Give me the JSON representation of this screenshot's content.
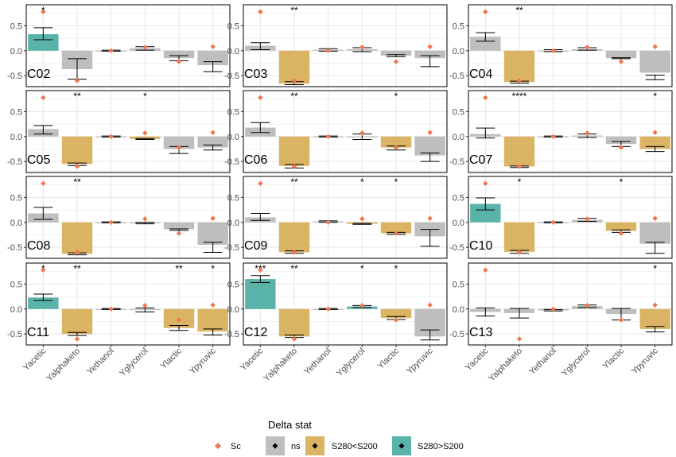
{
  "colors": {
    "ns": "#BEBEBE",
    "lt": "#DBB463",
    "gt": "#5AB3A8",
    "sc": "#F2764F",
    "grid": "#E6E6E6",
    "axis_text": "#4D4D4D"
  },
  "legend": {
    "title": "Delta stat",
    "items": [
      {
        "key": "sc",
        "label": "Sc"
      },
      {
        "key": "ns",
        "label": "ns"
      },
      {
        "key": "lt",
        "label": "S280<S200"
      },
      {
        "key": "gt",
        "label": "S280>S200"
      }
    ]
  },
  "chart_data": {
    "type": "bar",
    "facet_layout": "5 rows x 3 columns",
    "categories": [
      "Yacetic",
      "Yalphaketo",
      "Yethanol",
      "Yglycerol",
      "Ylactic",
      "Ypyruvic"
    ],
    "y_ticks": [
      -0.5,
      0.0,
      0.5
    ],
    "y_tick_labels": [
      "-0.5",
      "0.0",
      "0.5"
    ],
    "ylim": [
      -0.72,
      0.92
    ],
    "sc_values": [
      0.78,
      -0.6,
      0.0,
      0.07,
      -0.22,
      0.08
    ],
    "panels": [
      {
        "label": "C02",
        "values": [
          0.33,
          -0.37,
          0.0,
          0.05,
          -0.15,
          -0.29
        ],
        "err_lo": [
          0.22,
          -0.57,
          -0.01,
          0.01,
          -0.2,
          -0.42
        ],
        "err_hi": [
          0.46,
          -0.16,
          0.01,
          0.08,
          -0.1,
          -0.22
        ],
        "stat": [
          "gt",
          "ns",
          "ns",
          "ns",
          "ns",
          "ns"
        ],
        "sig": [
          "*",
          "",
          "",
          "",
          "",
          ""
        ]
      },
      {
        "label": "C03",
        "values": [
          0.1,
          -0.66,
          0.02,
          0.03,
          -0.1,
          -0.15
        ],
        "err_lo": [
          0.02,
          -0.68,
          -0.01,
          -0.02,
          -0.12,
          -0.32
        ],
        "err_hi": [
          0.16,
          -0.62,
          0.04,
          0.06,
          -0.08,
          -0.1
        ],
        "stat": [
          "ns",
          "lt",
          "ns",
          "ns",
          "ns",
          "ns"
        ],
        "sig": [
          "",
          "**",
          "",
          "",
          "",
          ""
        ]
      },
      {
        "label": "C04",
        "values": [
          0.28,
          -0.63,
          0.0,
          0.03,
          -0.15,
          -0.44
        ],
        "err_lo": [
          0.19,
          -0.65,
          -0.02,
          0.01,
          -0.16,
          -0.58
        ],
        "err_hi": [
          0.36,
          -0.61,
          0.02,
          0.06,
          -0.14,
          -0.49
        ],
        "stat": [
          "ns",
          "lt",
          "ns",
          "ns",
          "ns",
          "ns"
        ],
        "sig": [
          "",
          "**",
          "",
          "",
          "",
          ""
        ]
      },
      {
        "label": "C05",
        "values": [
          0.15,
          -0.55,
          0.0,
          -0.05,
          -0.25,
          -0.22
        ],
        "err_lo": [
          0.05,
          -0.58,
          -0.01,
          -0.06,
          -0.34,
          -0.27
        ],
        "err_hi": [
          0.22,
          -0.53,
          0.01,
          -0.04,
          -0.2,
          -0.17
        ],
        "stat": [
          "ns",
          "lt",
          "ns",
          "lt",
          "ns",
          "ns"
        ],
        "sig": [
          "",
          "**",
          "",
          "*",
          "",
          ""
        ]
      },
      {
        "label": "C06",
        "values": [
          0.18,
          -0.59,
          0.0,
          0.0,
          -0.22,
          -0.38
        ],
        "err_lo": [
          0.08,
          -0.63,
          -0.01,
          -0.06,
          -0.27,
          -0.5
        ],
        "err_hi": [
          0.28,
          -0.56,
          0.01,
          0.05,
          -0.19,
          -0.33
        ],
        "stat": [
          "ns",
          "lt",
          "ns",
          "ns",
          "lt",
          "ns"
        ],
        "sig": [
          "",
          "**",
          "",
          "",
          "*",
          ""
        ]
      },
      {
        "label": "C07",
        "values": [
          0.05,
          -0.6,
          0.0,
          0.02,
          -0.15,
          -0.25
        ],
        "err_lo": [
          -0.03,
          -0.62,
          -0.01,
          -0.02,
          -0.2,
          -0.3
        ],
        "err_hi": [
          0.17,
          -0.59,
          0.01,
          0.05,
          -0.1,
          -0.2
        ],
        "stat": [
          "ns",
          "lt",
          "ns",
          "ns",
          "ns",
          "lt"
        ],
        "sig": [
          "",
          "****",
          "",
          "",
          "",
          "*"
        ]
      },
      {
        "label": "C08",
        "values": [
          0.18,
          -0.63,
          0.0,
          -0.02,
          -0.14,
          -0.45
        ],
        "err_lo": [
          0.06,
          -0.65,
          -0.01,
          -0.03,
          -0.16,
          -0.6
        ],
        "err_hi": [
          0.3,
          -0.61,
          0.01,
          0.0,
          -0.13,
          -0.4
        ],
        "stat": [
          "ns",
          "lt",
          "ns",
          "ns",
          "ns",
          "ns"
        ],
        "sig": [
          "",
          "**",
          "",
          "",
          "",
          ""
        ]
      },
      {
        "label": "C09",
        "values": [
          0.1,
          -0.6,
          0.02,
          -0.03,
          -0.22,
          -0.28
        ],
        "err_lo": [
          0.04,
          -0.62,
          0.0,
          -0.04,
          -0.24,
          -0.48
        ],
        "err_hi": [
          0.18,
          -0.57,
          0.03,
          -0.02,
          -0.2,
          -0.14
        ],
        "stat": [
          "ns",
          "lt",
          "ns",
          "lt",
          "lt",
          "ns"
        ],
        "sig": [
          "",
          "**",
          "",
          "*",
          "*",
          ""
        ]
      },
      {
        "label": "C10",
        "values": [
          0.37,
          -0.59,
          0.0,
          0.05,
          -0.17,
          -0.43
        ],
        "err_lo": [
          0.25,
          -0.62,
          -0.01,
          0.02,
          -0.2,
          -0.62
        ],
        "err_hi": [
          0.49,
          -0.56,
          0.01,
          0.08,
          -0.15,
          -0.4
        ],
        "stat": [
          "gt",
          "lt",
          "ns",
          "ns",
          "lt",
          "ns"
        ],
        "sig": [
          "",
          "*",
          "",
          "",
          "*",
          ""
        ]
      },
      {
        "label": "C11",
        "values": [
          0.23,
          -0.5,
          0.0,
          -0.02,
          -0.38,
          -0.45
        ],
        "err_lo": [
          0.17,
          -0.53,
          -0.01,
          -0.06,
          -0.43,
          -0.52
        ],
        "err_hi": [
          0.3,
          -0.47,
          0.01,
          0.02,
          -0.33,
          -0.4
        ],
        "stat": [
          "gt",
          "lt",
          "ns",
          "ns",
          "lt",
          "lt"
        ],
        "sig": [
          "*",
          "**",
          "",
          "",
          "**",
          "*"
        ]
      },
      {
        "label": "C12",
        "values": [
          0.6,
          -0.55,
          0.0,
          0.05,
          -0.18,
          -0.55
        ],
        "err_lo": [
          0.53,
          -0.57,
          -0.01,
          0.03,
          -0.21,
          -0.62
        ],
        "err_hi": [
          0.67,
          -0.52,
          0.01,
          0.07,
          -0.15,
          -0.42
        ],
        "stat": [
          "gt",
          "lt",
          "ns",
          "gt",
          "lt",
          "ns"
        ],
        "sig": [
          "***",
          "**",
          "",
          "*",
          "*",
          ""
        ]
      },
      {
        "label": "C13",
        "values": [
          -0.06,
          -0.08,
          -0.03,
          0.06,
          -0.1,
          -0.4
        ],
        "err_lo": [
          -0.14,
          -0.18,
          -0.04,
          0.03,
          -0.22,
          -0.46
        ],
        "err_hi": [
          0.02,
          0.01,
          -0.01,
          0.08,
          0.01,
          -0.35
        ],
        "stat": [
          "ns",
          "ns",
          "ns",
          "ns",
          "ns",
          "lt"
        ],
        "sig": [
          "",
          "",
          "",
          "",
          "",
          "*"
        ]
      }
    ]
  }
}
